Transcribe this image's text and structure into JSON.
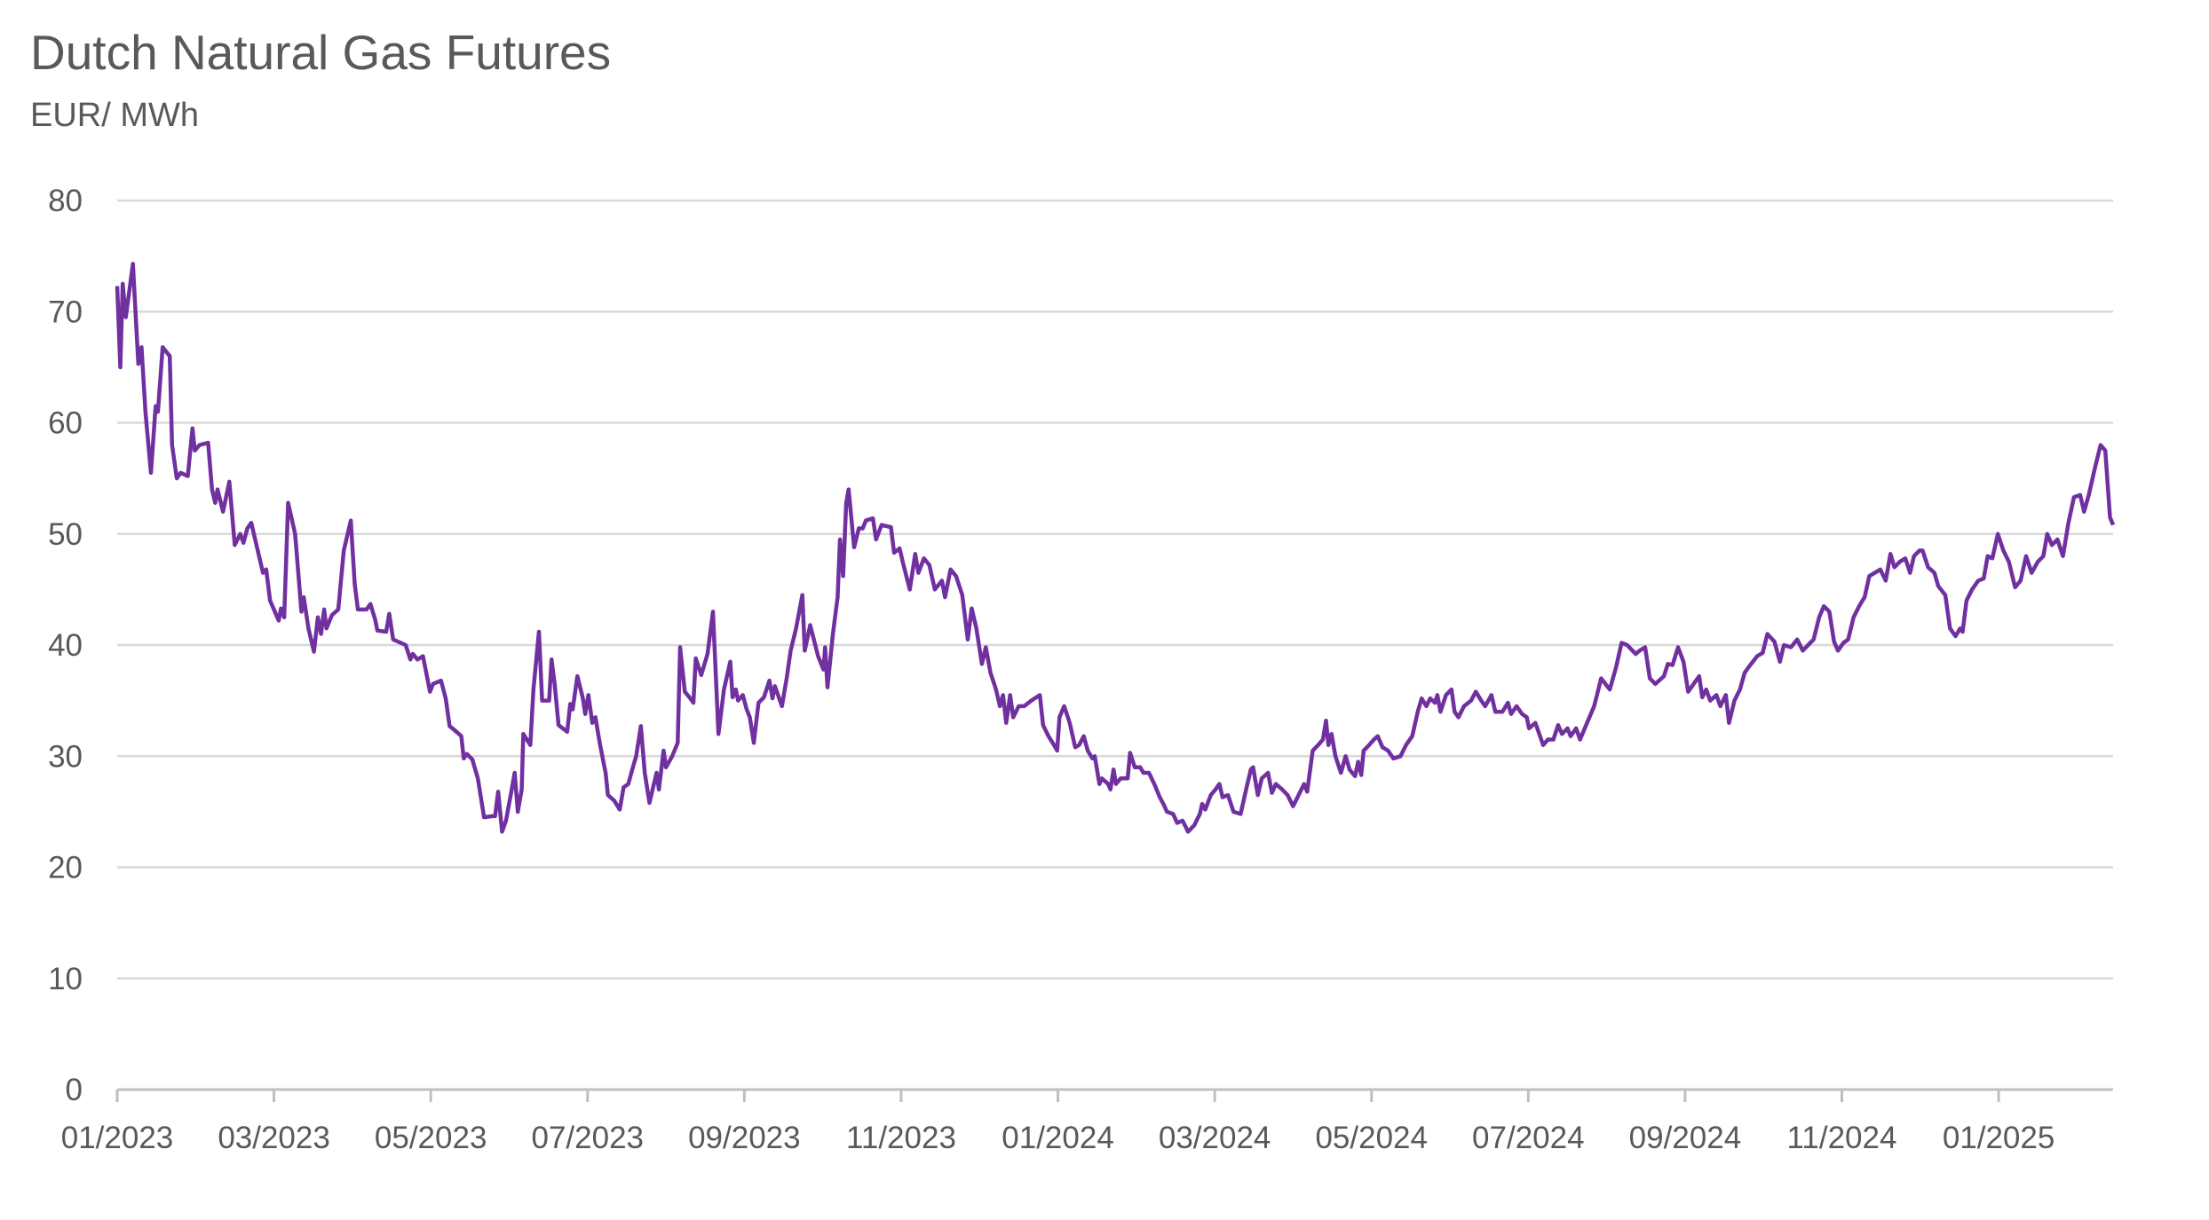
{
  "chart_data": {
    "type": "line",
    "title": "Dutch Natural Gas Futures",
    "subtitle": "EUR/ MWh",
    "color": "#7030a0",
    "grid": true,
    "ylim": [
      0,
      80
    ],
    "yticks": [
      0,
      10,
      20,
      30,
      40,
      50,
      60,
      70,
      80
    ],
    "xlim": [
      0,
      25.46
    ],
    "xticks": [
      {
        "value": 0,
        "label": "01/2023"
      },
      {
        "value": 2,
        "label": "03/2023"
      },
      {
        "value": 4,
        "label": "05/2023"
      },
      {
        "value": 6,
        "label": "07/2023"
      },
      {
        "value": 8,
        "label": "09/2023"
      },
      {
        "value": 10,
        "label": "11/2023"
      },
      {
        "value": 12,
        "label": "01/2024"
      },
      {
        "value": 14,
        "label": "03/2024"
      },
      {
        "value": 16,
        "label": "05/2024"
      },
      {
        "value": 18,
        "label": "07/2024"
      },
      {
        "value": 20,
        "label": "09/2024"
      },
      {
        "value": 22,
        "label": "11/2024"
      },
      {
        "value": 24,
        "label": "01/2025"
      }
    ],
    "x": [
      0.0,
      0.04,
      0.07,
      0.11,
      0.2,
      0.27,
      0.31,
      0.36,
      0.43,
      0.49,
      0.52,
      0.58,
      0.67,
      0.7,
      0.76,
      0.81,
      0.9,
      0.96,
      0.99,
      1.05,
      1.16,
      1.21,
      1.25,
      1.28,
      1.35,
      1.43,
      1.5,
      1.57,
      1.61,
      1.66,
      1.71,
      1.81,
      1.86,
      1.9,
      1.95,
      2.06,
      2.09,
      2.13,
      2.18,
      2.27,
      2.35,
      2.38,
      2.44,
      2.51,
      2.56,
      2.6,
      2.64,
      2.67,
      2.74,
      2.82,
      2.89,
      2.98,
      3.03,
      3.07,
      3.18,
      3.23,
      3.29,
      3.32,
      3.43,
      3.47,
      3.52,
      3.68,
      3.74,
      3.77,
      3.83,
      3.9,
      3.99,
      4.03,
      4.13,
      4.19,
      4.24,
      4.31,
      4.39,
      4.42,
      4.46,
      4.53,
      4.6,
      4.68,
      4.78,
      4.82,
      4.86,
      4.91,
      4.96,
      5.02,
      5.07,
      5.11,
      5.16,
      5.18,
      5.27,
      5.31,
      5.38,
      5.42,
      5.51,
      5.54,
      5.58,
      5.63,
      5.74,
      5.78,
      5.81,
      5.87,
      5.94,
      5.97,
      6.01,
      6.06,
      6.1,
      6.16,
      6.23,
      6.26,
      6.34,
      6.41,
      6.46,
      6.52,
      6.57,
      6.62,
      6.68,
      6.73,
      6.79,
      6.84,
      6.88,
      6.91,
      6.97,
      7.0,
      7.08,
      7.15,
      7.18,
      7.24,
      7.31,
      7.35,
      7.38,
      7.45,
      7.53,
      7.6,
      7.67,
      7.74,
      7.82,
      7.85,
      7.89,
      7.92,
      7.98,
      8.03,
      8.07,
      8.12,
      8.18,
      8.25,
      8.32,
      8.36,
      8.39,
      8.43,
      8.48,
      8.54,
      8.59,
      8.66,
      8.74,
      8.77,
      8.84,
      8.94,
      9.01,
      9.03,
      9.06,
      9.13,
      9.19,
      9.22,
      9.26,
      9.3,
      9.33,
      9.4,
      9.46,
      9.51,
      9.55,
      9.64,
      9.68,
      9.75,
      9.87,
      9.91,
      9.98,
      10.02,
      10.11,
      10.18,
      10.22,
      10.29,
      10.36,
      10.43,
      10.52,
      10.56,
      10.63,
      10.7,
      10.78,
      10.85,
      10.9,
      10.96,
      11.03,
      11.08,
      11.14,
      11.21,
      11.26,
      11.3,
      11.34,
      11.39,
      11.43,
      11.5,
      11.57,
      11.66,
      11.77,
      11.81,
      11.88,
      11.95,
      11.99,
      12.02,
      12.08,
      12.15,
      12.22,
      12.27,
      12.33,
      12.38,
      12.44,
      12.47,
      12.53,
      12.56,
      12.64,
      12.67,
      12.71,
      12.74,
      12.8,
      12.89,
      12.92,
      12.98,
      13.05,
      13.09,
      13.16,
      13.23,
      13.3,
      13.36,
      13.39,
      13.47,
      13.52,
      13.59,
      13.66,
      13.74,
      13.81,
      13.84,
      13.88,
      13.95,
      14.01,
      14.06,
      14.1,
      14.17,
      14.24,
      14.33,
      14.4,
      14.46,
      14.49,
      14.55,
      14.6,
      14.68,
      14.73,
      14.78,
      14.86,
      14.93,
      15.0,
      15.07,
      15.14,
      15.18,
      15.25,
      15.32,
      15.38,
      15.42,
      15.45,
      15.49,
      15.54,
      15.61,
      15.67,
      15.72,
      15.79,
      15.83,
      15.87,
      15.9,
      15.97,
      16.03,
      16.08,
      16.14,
      16.21,
      16.28,
      16.37,
      16.44,
      16.52,
      16.59,
      16.64,
      16.7,
      16.75,
      16.81,
      16.84,
      16.88,
      16.95,
      17.02,
      17.06,
      17.11,
      17.18,
      17.27,
      17.33,
      17.4,
      17.45,
      17.53,
      17.58,
      17.67,
      17.74,
      17.78,
      17.85,
      17.92,
      17.98,
      18.01,
      18.09,
      18.14,
      18.19,
      18.25,
      18.32,
      18.38,
      18.43,
      18.5,
      18.54,
      18.61,
      18.66,
      18.75,
      18.84,
      18.93,
      19.04,
      19.12,
      19.19,
      19.26,
      19.37,
      19.42,
      19.49,
      19.55,
      19.62,
      19.73,
      19.78,
      19.84,
      19.91,
      19.98,
      20.04,
      20.11,
      20.18,
      20.22,
      20.27,
      20.32,
      20.4,
      20.45,
      20.52,
      20.56,
      20.63,
      20.7,
      20.76,
      20.81,
      20.92,
      20.99,
      21.05,
      21.14,
      21.21,
      21.26,
      21.35,
      21.43,
      21.5,
      21.57,
      21.64,
      21.71,
      21.77,
      21.84,
      21.9,
      21.95,
      22.02,
      22.08,
      22.15,
      22.22,
      22.29,
      22.35,
      22.42,
      22.49,
      22.56,
      22.62,
      22.67,
      22.74,
      22.81,
      22.87,
      22.92,
      22.99,
      23.03,
      23.1,
      23.18,
      23.23,
      23.32,
      23.38,
      23.45,
      23.51,
      23.54,
      23.59,
      23.66,
      23.74,
      23.81,
      23.86,
      23.92,
      23.99,
      24.06,
      24.13,
      24.21,
      24.28,
      24.35,
      24.42,
      24.5,
      24.57,
      24.62,
      24.68,
      24.75,
      24.82,
      24.89,
      24.96,
      25.04,
      25.09,
      25.15,
      25.23,
      25.3,
      25.36,
      25.42,
      25.46
    ],
    "values": [
      72.3,
      65,
      72.5,
      69.5,
      74.3,
      65.3,
      66.8,
      61,
      55.5,
      61.5,
      61,
      66.8,
      66,
      58,
      55,
      55.5,
      55.2,
      59.5,
      57.5,
      58,
      58.2,
      54,
      52.8,
      54,
      52,
      54.7,
      49,
      50,
      49.2,
      50.5,
      51,
      48,
      46.5,
      46.8,
      44,
      42.2,
      43.3,
      42.5,
      52.8,
      50,
      43,
      44.3,
      41.5,
      39.4,
      42.5,
      41,
      43.2,
      41.5,
      42.7,
      43.2,
      48.5,
      51.2,
      45.5,
      43.2,
      43.2,
      43.7,
      42.3,
      41.3,
      41.2,
      42.8,
      40.5,
      40,
      38.7,
      39.2,
      38.7,
      39,
      35.8,
      36.5,
      36.8,
      35.2,
      32.7,
      32.3,
      31.8,
      29.8,
      30.2,
      29.7,
      28,
      24.5,
      24.6,
      24.6,
      26.8,
      23.2,
      24.2,
      26.5,
      28.5,
      25,
      27,
      32,
      31,
      36,
      41.2,
      35,
      35,
      38.7,
      36.5,
      32.8,
      32.2,
      34.7,
      34.2,
      37.2,
      35.2,
      33.8,
      35.5,
      33,
      33.5,
      31,
      28.5,
      26.5,
      26,
      25.2,
      27.2,
      27.5,
      28.8,
      30,
      32.7,
      28.5,
      25.8,
      27.3,
      28.5,
      27,
      30.5,
      29,
      30,
      31.2,
      39.8,
      35.8,
      35.2,
      34.8,
      38.8,
      37.3,
      39.2,
      43,
      32,
      36,
      38.5,
      35.3,
      36,
      35,
      35.5,
      34.2,
      33.5,
      31.2,
      34.8,
      35.3,
      36.8,
      35.2,
      36.3,
      35.5,
      34.5,
      37,
      39.5,
      41.5,
      44.5,
      39.5,
      41.8,
      39,
      37.8,
      39.8,
      36.2,
      41,
      44.3,
      49.5,
      46.2,
      52.8,
      54,
      48.8,
      50.5,
      50.5,
      51.2,
      51.4,
      49.5,
      50.8,
      50.6,
      48.3,
      48.7,
      47.5,
      45,
      48.2,
      46.5,
      47.8,
      47.2,
      45,
      45.8,
      44.3,
      46.8,
      46.2,
      44.5,
      40.5,
      43.3,
      41.5,
      38.3,
      39.8,
      37.5,
      36,
      34.5,
      35.5,
      33,
      35.5,
      33.5,
      34.5,
      34.5,
      35,
      35.5,
      32.8,
      31.8,
      31,
      30.5,
      33.5,
      34.5,
      33,
      30.8,
      31,
      31.8,
      30.5,
      29.8,
      30,
      27.5,
      28,
      27.5,
      27,
      28.8,
      27.5,
      28,
      28,
      30.3,
      29,
      29,
      28.5,
      28.5,
      27.5,
      26.3,
      25.5,
      25,
      24.8,
      24,
      24.2,
      23.2,
      23.8,
      24.8,
      25.7,
      25.2,
      26.5,
      27,
      27.5,
      26.3,
      26.5,
      25,
      24.8,
      27,
      28.8,
      29,
      26.5,
      28,
      28.5,
      26.7,
      27.5,
      27,
      26.5,
      25.5,
      26.5,
      27.5,
      26.8,
      30.5,
      31,
      31.5,
      33.2,
      31,
      32,
      30,
      28.5,
      30,
      28.8,
      28.2,
      29.5,
      28.3,
      30.5,
      31,
      31.5,
      31.8,
      30.8,
      30.5,
      29.8,
      30,
      31,
      31.8,
      34,
      35.2,
      34.5,
      35.2,
      34.8,
      35.5,
      34,
      35.5,
      36,
      34,
      33.5,
      34.5,
      35,
      35.8,
      35,
      34.5,
      35.5,
      34,
      34,
      34.8,
      33.8,
      34.5,
      33.8,
      33.5,
      32.5,
      33,
      32,
      31,
      31.5,
      31.5,
      32.8,
      32,
      32.5,
      31.8,
      32.5,
      31.5,
      33,
      34.5,
      37,
      36,
      38,
      40.2,
      40,
      39.2,
      39.5,
      39.8,
      37,
      36.5,
      37.2,
      38.3,
      38.2,
      39.8,
      38.5,
      35.8,
      36.5,
      37.2,
      35.3,
      36,
      35,
      35.5,
      34.5,
      35.5,
      33,
      35,
      36,
      37.5,
      38,
      39,
      39.3,
      41,
      40.3,
      38.5,
      40,
      39.8,
      40.5,
      39.5,
      40,
      40.5,
      42.5,
      43.5,
      43,
      40.3,
      39.5,
      40.2,
      40.5,
      42.5,
      43.5,
      44.3,
      46.2,
      46.5,
      46.8,
      45.8,
      48.2,
      47,
      47.5,
      47.8,
      46.5,
      48,
      48.5,
      48.5,
      47,
      46.5,
      45.3,
      44.5,
      41.5,
      40.8,
      41.5,
      41.2,
      44,
      45,
      45.8,
      46,
      48,
      47.8,
      50,
      48.5,
      47.5,
      45.2,
      45.8,
      48,
      46.5,
      47.5,
      48,
      50,
      49,
      49.5,
      48,
      51,
      53.3,
      53.5,
      52,
      53.5,
      56,
      58,
      57.5,
      51.5,
      50.8
    ]
  }
}
